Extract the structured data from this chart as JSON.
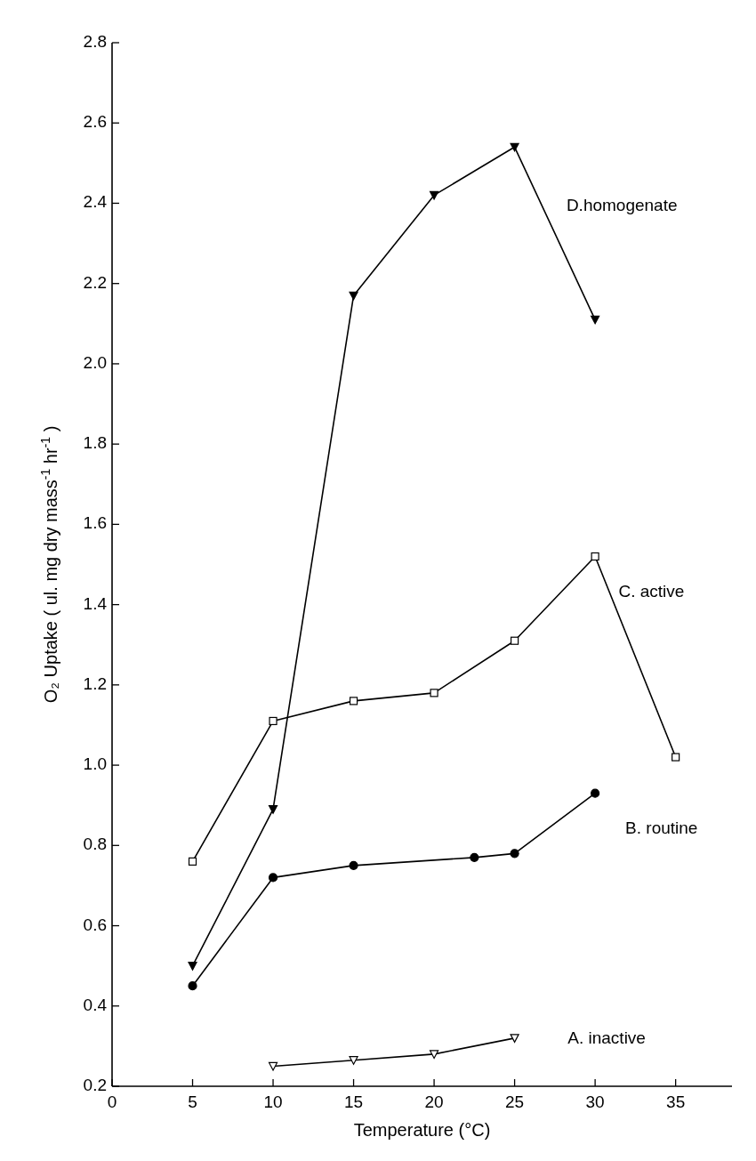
{
  "chart_data": {
    "type": "line",
    "xlabel": "Temperature (°C)",
    "ylabel": "O₂ Uptake ( ul. mg dry mass$^{-1}$ hr$^{-1}$ )",
    "xlim": [
      0,
      38.5
    ],
    "xticks": [
      0,
      5,
      10,
      15,
      20,
      25,
      30,
      35
    ],
    "ylim": [
      0.2,
      2.8
    ],
    "yticks": [
      0.2,
      0.4,
      0.6,
      0.8,
      {
        "value": 1,
        "label": "1.0"
      },
      1.2,
      1.4,
      1.6,
      1.8,
      {
        "value": 2,
        "label": "2.0"
      },
      2.2,
      2.4,
      2.6,
      2.8
    ],
    "grid": false,
    "line_style": "solid",
    "series": [
      {
        "name": "A. inactive",
        "color": "#000000",
        "marker": "triangle",
        "x": [
          10,
          15,
          20,
          25
        ],
        "values": [
          0.25,
          0.265,
          0.28,
          0.32
        ]
      },
      {
        "name": "B. routine",
        "color": "#000000",
        "marker": "circle",
        "x": [
          5,
          10,
          15,
          22.5,
          25,
          30
        ],
        "values": [
          0.45,
          0.72,
          0.75,
          0.77,
          0.78,
          0.93
        ]
      },
      {
        "name": "C. active",
        "color": "#000000",
        "marker": "square",
        "x": [
          5,
          10,
          15,
          20,
          25,
          30,
          35
        ],
        "values": [
          0.76,
          1.11,
          1.16,
          1.18,
          1.31,
          1.52,
          1.02
        ]
      },
      {
        "name": "D.homogenate",
        "color": "#000000",
        "marker": "triangle",
        "x": [
          5,
          10,
          15,
          20,
          25,
          30
        ],
        "values": [
          0.5,
          0.89,
          2.17,
          2.42,
          2.54,
          2.11
        ]
      }
    ]
  }
}
